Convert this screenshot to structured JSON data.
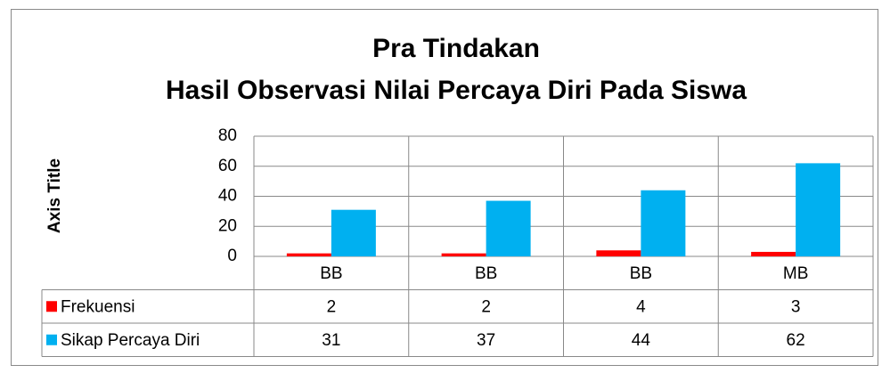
{
  "chart_data": {
    "type": "bar",
    "title": [
      "Pra Tindakan",
      "Hasil Observasi Nilai Percaya Diri Pada Siswa"
    ],
    "y_axis_label": "Axis Title",
    "categories": [
      "BB",
      "BB",
      "BB",
      "MB"
    ],
    "series": [
      {
        "name": "Frekuensi",
        "color": "#ff0000",
        "values": [
          2,
          2,
          4,
          3
        ]
      },
      {
        "name": "Sikap Percaya Diri",
        "color": "#00b0f0",
        "values": [
          31,
          37,
          44,
          62
        ]
      }
    ],
    "ylim": [
      0,
      80
    ],
    "yticks": [
      0,
      20,
      40,
      60,
      80
    ],
    "grid": true,
    "data_table": true
  }
}
